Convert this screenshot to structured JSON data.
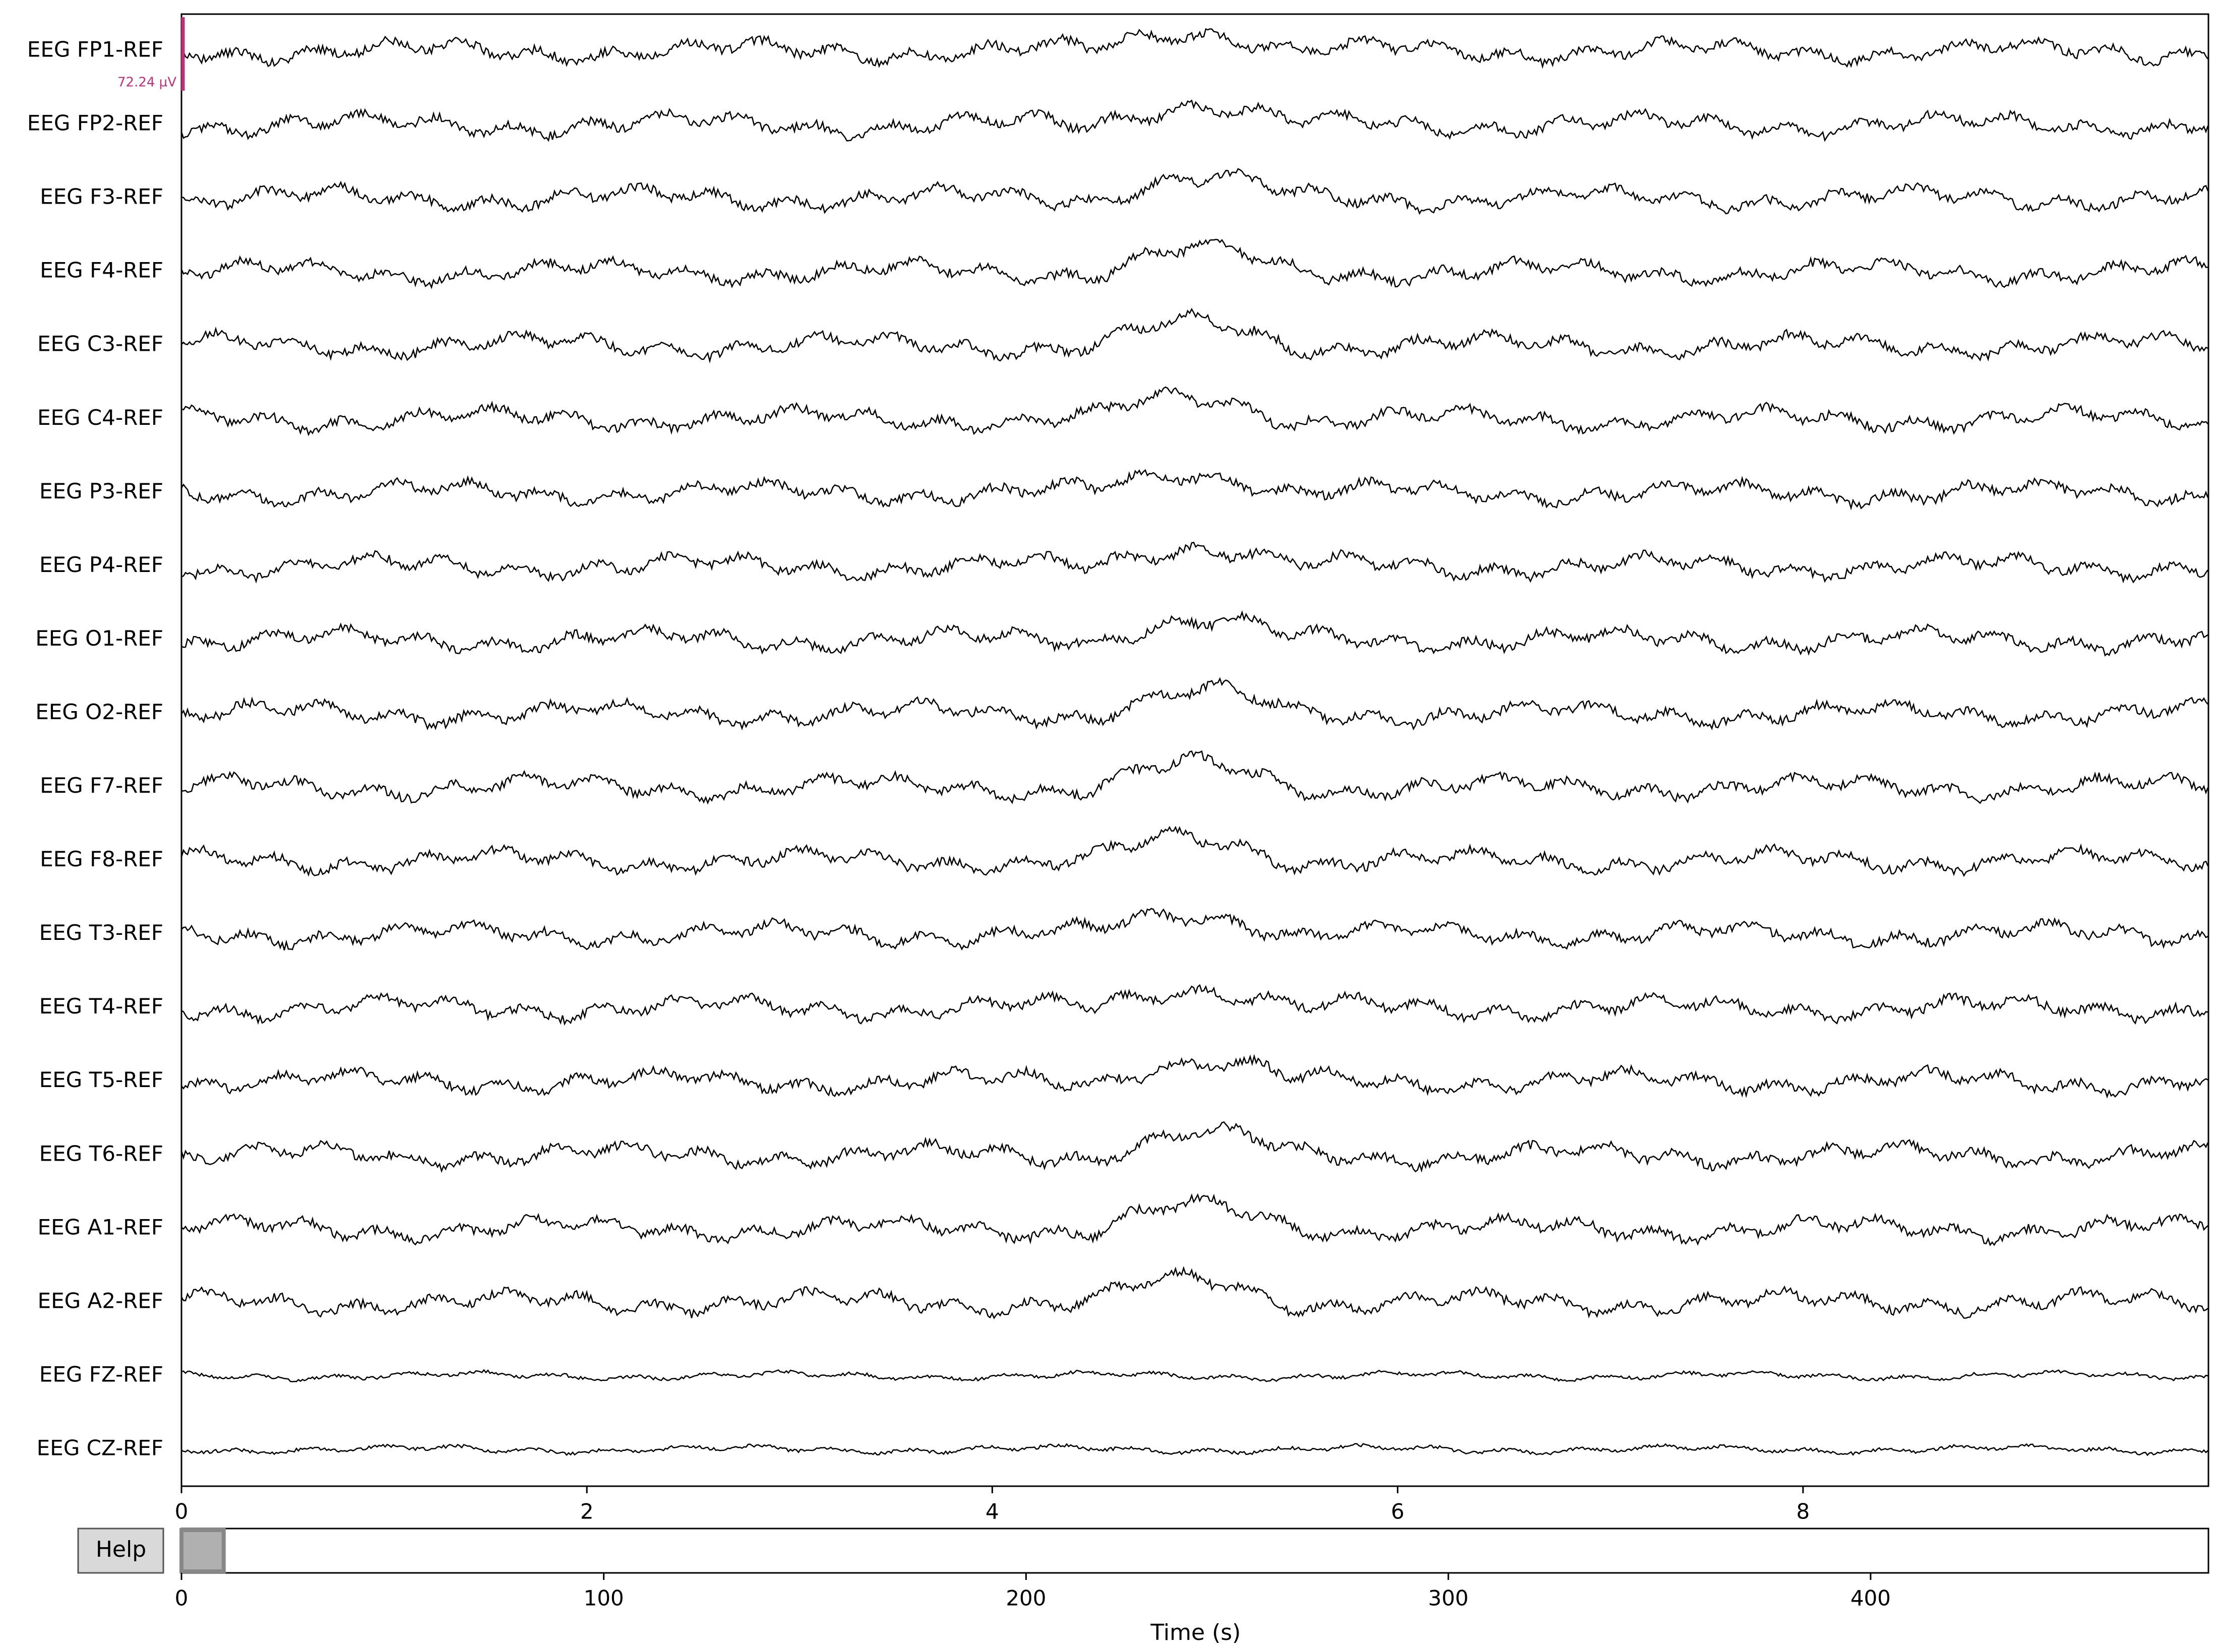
{
  "channels": [
    "EEG FP1-REF",
    "EEG FP2-REF",
    "EEG F3-REF",
    "EEG F4-REF",
    "EEG C3-REF",
    "EEG C4-REF",
    "EEG P3-REF",
    "EEG P4-REF",
    "EEG O1-REF",
    "EEG O2-REF",
    "EEG F7-REF",
    "EEG F8-REF",
    "EEG T3-REF",
    "EEG T4-REF",
    "EEG T5-REF",
    "EEG T6-REF",
    "EEG A1-REF",
    "EEG A2-REF",
    "EEG FZ-REF",
    "EEG CZ-REF"
  ],
  "scale_label": "72.24 µV",
  "view_axis": {
    "xlim": [
      0,
      10
    ],
    "xticks": [
      0,
      2,
      4,
      6,
      8
    ]
  },
  "help_button": "Help",
  "scrollbar": {
    "xlim": [
      0,
      480
    ],
    "xticks": [
      0,
      100,
      200,
      300,
      400
    ],
    "window": [
      0,
      10
    ]
  },
  "xlabel": "Time (s)"
}
